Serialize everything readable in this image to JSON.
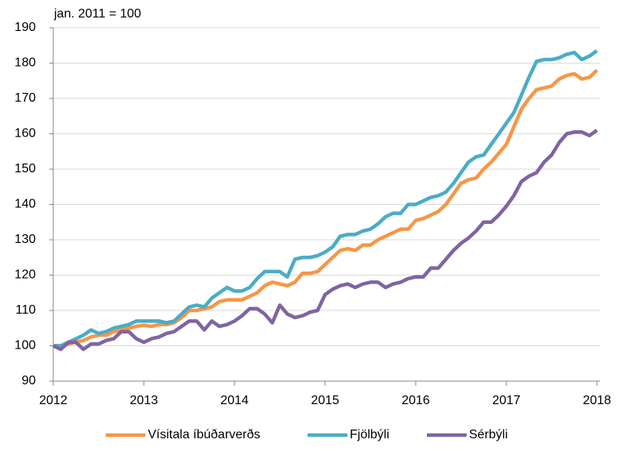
{
  "chart_data": {
    "type": "line",
    "annotation": "jan. 2011 = 100",
    "x": [
      2012,
      2012.083,
      2012.167,
      2012.25,
      2012.333,
      2012.417,
      2012.5,
      2012.583,
      2012.667,
      2012.75,
      2012.833,
      2012.917,
      2013,
      2013.083,
      2013.167,
      2013.25,
      2013.333,
      2013.417,
      2013.5,
      2013.583,
      2013.667,
      2013.75,
      2013.833,
      2013.917,
      2014,
      2014.083,
      2014.167,
      2014.25,
      2014.333,
      2014.417,
      2014.5,
      2014.583,
      2014.667,
      2014.75,
      2014.833,
      2014.917,
      2015,
      2015.083,
      2015.167,
      2015.25,
      2015.333,
      2015.417,
      2015.5,
      2015.583,
      2015.667,
      2015.75,
      2015.833,
      2015.917,
      2016,
      2016.083,
      2016.167,
      2016.25,
      2016.333,
      2016.417,
      2016.5,
      2016.583,
      2016.667,
      2016.75,
      2016.833,
      2016.917,
      2017,
      2017.083,
      2017.167,
      2017.25,
      2017.333,
      2017.417,
      2017.5,
      2017.583,
      2017.667,
      2017.75,
      2017.833,
      2017.917,
      2018
    ],
    "series": [
      {
        "name": "Vísitala íbúðarverðs",
        "color": "#f79646",
        "values": [
          100,
          100,
          100.5,
          101,
          101.5,
          102.5,
          103,
          103,
          104,
          104.5,
          105,
          105.5,
          105.8,
          105.5,
          106,
          106,
          106.5,
          108,
          110,
          110,
          110.5,
          111,
          112.5,
          113,
          113,
          113,
          114,
          115,
          117,
          118,
          117.5,
          117,
          118,
          120.5,
          120.5,
          121,
          123,
          125,
          127,
          127.5,
          127,
          128.5,
          128.5,
          130,
          131,
          132,
          133,
          133,
          135.5,
          136,
          137,
          138,
          140,
          143,
          146,
          147,
          147.5,
          150,
          152,
          154.5,
          157,
          162,
          167,
          170,
          172.5,
          173,
          173.5,
          175.5,
          176.5,
          177,
          175.5,
          176,
          178
        ]
      },
      {
        "name": "Fjölbýli",
        "color": "#4bacc6",
        "values": [
          100,
          100,
          101,
          102,
          103,
          104.5,
          103.5,
          104,
          105,
          105.5,
          106,
          107,
          107,
          107,
          107,
          106.5,
          107,
          109,
          111,
          111.5,
          111,
          113.5,
          115,
          116.5,
          115.5,
          115.5,
          116.5,
          119,
          121,
          121,
          121,
          119.5,
          124.5,
          125,
          125,
          125.5,
          126.5,
          128,
          131,
          131.5,
          131.5,
          132.5,
          133,
          134.5,
          136.5,
          137.5,
          137.5,
          140,
          140,
          141,
          142,
          142.5,
          143.5,
          146,
          149,
          152,
          153.5,
          154,
          157,
          160,
          163,
          166,
          171,
          176,
          180.5,
          181,
          181,
          181.5,
          182.5,
          183,
          181,
          182,
          183.5
        ]
      },
      {
        "name": "Sérbýli",
        "color": "#8064a2",
        "values": [
          100,
          99,
          101,
          101,
          99,
          100.5,
          100.5,
          101.5,
          102,
          104,
          104,
          102,
          101,
          102,
          102.5,
          103.5,
          104,
          105.5,
          107,
          107,
          104.5,
          107,
          105.5,
          106,
          107,
          108.5,
          110.5,
          110.5,
          109,
          106.5,
          111.5,
          109,
          108,
          108.5,
          109.5,
          110,
          114.5,
          116,
          117,
          117.5,
          116.5,
          117.5,
          118,
          118,
          116.5,
          117.5,
          118,
          119,
          119.5,
          119.5,
          122,
          122,
          124.5,
          127,
          129,
          130.5,
          132.5,
          135,
          135,
          137,
          139.5,
          142.5,
          146.5,
          148,
          149,
          152,
          154,
          157.5,
          160,
          160.5,
          160.5,
          159.5,
          161
        ]
      }
    ],
    "xlim": [
      2012,
      2018
    ],
    "xticks": [
      2012,
      2013,
      2014,
      2015,
      2016,
      2017,
      2018
    ],
    "ylim": [
      90,
      190
    ],
    "yticks": [
      90,
      100,
      110,
      120,
      130,
      140,
      150,
      160,
      170,
      180,
      190
    ],
    "grid": true,
    "legend": "bottom"
  }
}
